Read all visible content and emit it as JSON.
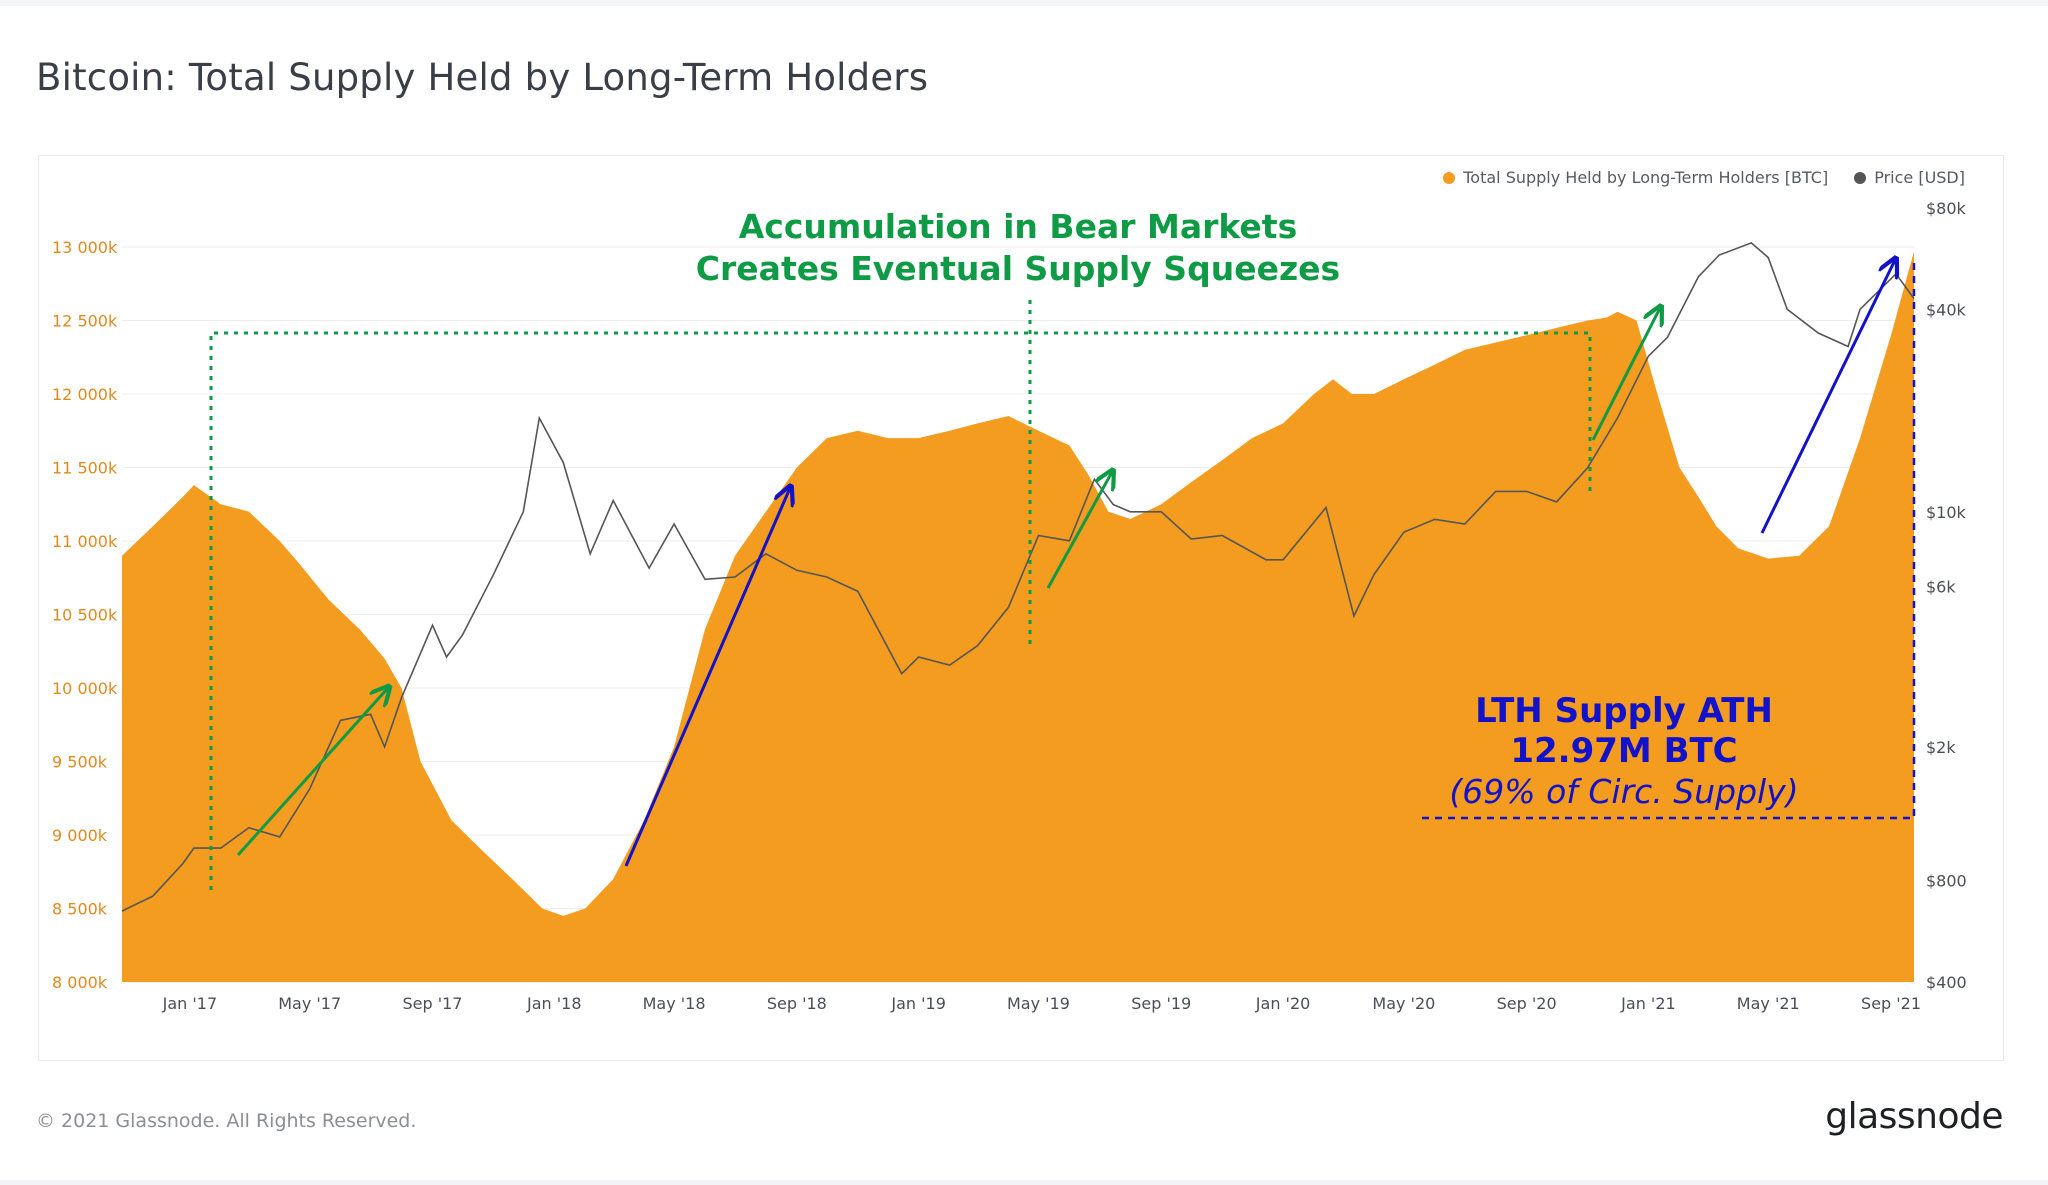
{
  "header": {
    "title": "Bitcoin: Total Supply Held by Long-Term Holders"
  },
  "footer": {
    "copyright": "© 2021 Glassnode. All Rights Reserved.",
    "brand": "glassnode"
  },
  "colors": {
    "supply": "#f39c1f",
    "price": "#555555",
    "green_annotation": "#0f9a45",
    "blue_annotation": "#1212c8"
  },
  "chart_data": {
    "type": "area",
    "title": "Bitcoin: Total Supply Held by Long-Term Holders",
    "legend_position": "top-right",
    "grid": true,
    "x_ticks": [
      "Jan '17",
      "May '17",
      "Sep '17",
      "Jan '18",
      "May '18",
      "Sep '18",
      "Jan '19",
      "May '19",
      "Sep '19",
      "Jan '20",
      "May '20",
      "Sep '20",
      "Jan '21",
      "May '21",
      "Sep '21"
    ],
    "x_range": [
      "2016-10-25",
      "2021-09-24"
    ],
    "y_left": {
      "label": "",
      "ticks": [
        "8 000k",
        "8 500k",
        "9 000k",
        "9 500k",
        "10 000k",
        "10 500k",
        "11 000k",
        "11 500k",
        "12 000k",
        "12 500k",
        "13 000k"
      ],
      "range": [
        8000,
        13000
      ],
      "unit": "k BTC"
    },
    "y_right": {
      "label": "",
      "scale": "log",
      "ticks": [
        "$400",
        "$800",
        "$2k",
        "$6k",
        "$10k",
        "$40k",
        "$80k"
      ],
      "tick_values": [
        400,
        800,
        2000,
        6000,
        10000,
        40000,
        80000
      ]
    },
    "series": [
      {
        "name": "Total Supply Held by Long-Term Holders [BTC]",
        "axis": "left",
        "style": "area",
        "x": [
          "2016-10-25",
          "2016-11-25",
          "2016-12-25",
          "2017-01-05",
          "2017-02-01",
          "2017-03-01",
          "2017-04-01",
          "2017-04-20",
          "2017-05-20",
          "2017-06-20",
          "2017-07-15",
          "2017-08-01",
          "2017-08-20",
          "2017-09-20",
          "2017-10-20",
          "2017-11-20",
          "2017-12-20",
          "2018-01-10",
          "2018-02-01",
          "2018-03-01",
          "2018-04-01",
          "2018-05-01",
          "2018-06-01",
          "2018-07-01",
          "2018-08-01",
          "2018-09-01",
          "2018-10-01",
          "2018-11-01",
          "2018-12-01",
          "2019-01-01",
          "2019-02-01",
          "2019-03-01",
          "2019-04-01",
          "2019-05-01",
          "2019-06-01",
          "2019-06-20",
          "2019-07-10",
          "2019-08-01",
          "2019-09-01",
          "2019-10-01",
          "2019-11-01",
          "2019-12-01",
          "2020-01-01",
          "2020-02-01",
          "2020-02-20",
          "2020-03-10",
          "2020-04-01",
          "2020-05-01",
          "2020-06-01",
          "2020-07-01",
          "2020-08-01",
          "2020-09-01",
          "2020-10-01",
          "2020-11-01",
          "2020-11-20",
          "2020-12-01",
          "2020-12-20",
          "2021-01-10",
          "2021-02-01",
          "2021-02-20",
          "2021-03-10",
          "2021-04-01",
          "2021-05-01",
          "2021-06-01",
          "2021-07-01",
          "2021-08-01",
          "2021-09-01",
          "2021-09-24"
        ],
        "y": [
          10900,
          11100,
          11300,
          11380,
          11250,
          11200,
          11000,
          10850,
          10600,
          10400,
          10200,
          10000,
          9500,
          9100,
          8900,
          8700,
          8500,
          8450,
          8500,
          8700,
          9100,
          9600,
          10400,
          10900,
          11200,
          11500,
          11700,
          11750,
          11700,
          11700,
          11750,
          11800,
          11850,
          11750,
          11650,
          11450,
          11200,
          11150,
          11250,
          11400,
          11550,
          11700,
          11800,
          12000,
          12100,
          12000,
          12000,
          12100,
          12200,
          12300,
          12350,
          12400,
          12450,
          12500,
          12520,
          12560,
          12500,
          12000,
          11500,
          11300,
          11100,
          10950,
          10880,
          10900,
          11100,
          11700,
          12400,
          12970
        ]
      },
      {
        "name": "Price [USD]",
        "axis": "right",
        "style": "line",
        "x": [
          "2016-10-25",
          "2016-11-25",
          "2016-12-25",
          "2017-01-05",
          "2017-02-01",
          "2017-03-01",
          "2017-04-01",
          "2017-05-01",
          "2017-06-01",
          "2017-07-01",
          "2017-07-15",
          "2017-08-01",
          "2017-09-01",
          "2017-09-15",
          "2017-10-01",
          "2017-11-01",
          "2017-12-01",
          "2017-12-17",
          "2018-01-10",
          "2018-02-06",
          "2018-03-01",
          "2018-04-06",
          "2018-05-01",
          "2018-06-01",
          "2018-07-01",
          "2018-08-01",
          "2018-09-01",
          "2018-10-01",
          "2018-11-01",
          "2018-12-15",
          "2019-01-01",
          "2019-02-01",
          "2019-03-01",
          "2019-04-01",
          "2019-05-01",
          "2019-06-01",
          "2019-06-26",
          "2019-07-15",
          "2019-08-01",
          "2019-09-01",
          "2019-10-01",
          "2019-11-01",
          "2019-12-15",
          "2020-01-01",
          "2020-02-13",
          "2020-03-12",
          "2020-04-01",
          "2020-05-01",
          "2020-06-01",
          "2020-07-01",
          "2020-08-01",
          "2020-09-01",
          "2020-10-01",
          "2020-11-01",
          "2020-12-01",
          "2021-01-01",
          "2021-01-20",
          "2021-02-20",
          "2021-03-13",
          "2021-04-14",
          "2021-05-01",
          "2021-05-20",
          "2021-06-20",
          "2021-07-20",
          "2021-08-01",
          "2021-09-06",
          "2021-09-24"
        ],
        "y": [
          650,
          720,
          900,
          1000,
          1000,
          1150,
          1080,
          1500,
          2400,
          2500,
          2000,
          2800,
          4600,
          3700,
          4300,
          6500,
          10000,
          19000,
          14000,
          7500,
          10800,
          6800,
          9200,
          6300,
          6400,
          7500,
          6700,
          6400,
          5800,
          3300,
          3700,
          3500,
          4000,
          5200,
          8500,
          8200,
          12500,
          10500,
          10000,
          10000,
          8300,
          8500,
          7200,
          7200,
          10300,
          4900,
          6500,
          8700,
          9500,
          9200,
          11500,
          11500,
          10700,
          13500,
          19000,
          29000,
          33000,
          50000,
          58000,
          63000,
          57000,
          40000,
          34000,
          31000,
          40000,
          51000,
          43000
        ]
      }
    ],
    "annotations": [
      {
        "text": "Accumulation in Bear Markets",
        "color": "green"
      },
      {
        "text": "Creates Eventual Supply Squeezes",
        "color": "green"
      },
      {
        "text": "LTH Supply ATH",
        "color": "blue"
      },
      {
        "text": "12.97M BTC",
        "color": "blue"
      },
      {
        "text": "(69% of Circ. Supply)",
        "color": "blue"
      }
    ]
  }
}
